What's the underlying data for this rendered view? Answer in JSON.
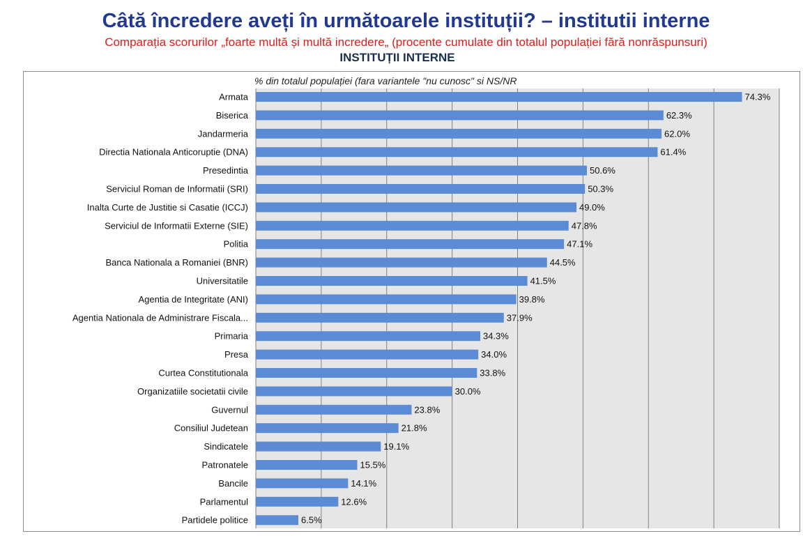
{
  "header": {
    "title": "Câtă încredere aveți în următoarele instituții? – institutii interne",
    "subtitle": "Comparația scorurilor „foarte multă și multă incredere„ (procente cumulate din totalul populației fără nonrăspunsuri)",
    "section_label": "INSTITUȚII INTERNE"
  },
  "colors": {
    "bar": "#5b8bd5",
    "plot_background": "#e6e6e6",
    "grid": "#7f7f7f",
    "title": "#213a8f",
    "subtitle": "#e31b1b"
  },
  "chart_data": {
    "type": "bar",
    "orientation": "horizontal",
    "axis_title": "% din totalul populației (fara variantele \"nu cunosc\" si NS/NR",
    "xlim": [
      0,
      80
    ],
    "grid": true,
    "value_suffix": "%",
    "categories": [
      "Armata",
      "Biserica",
      "Jandarmeria",
      "Directia Nationala Anticoruptie (DNA)",
      "Presedintia",
      "Serviciul Roman de Informatii (SRI)",
      "Inalta Curte de Justitie si Casatie (ICCJ)",
      "Serviciul de Informatii Externe (SIE)",
      "Politia",
      "Banca Nationala a Romaniei (BNR)",
      "Universitatile",
      "Agentia de Integritate (ANI)",
      "Agentia Nationala de Administrare Fiscala...",
      "Primaria",
      "Presa",
      "Curtea Constitutionala",
      "Organizatiile societatii civile",
      "Guvernul",
      "Consiliul Judetean",
      "Sindicatele",
      "Patronatele",
      "Bancile",
      "Parlamentul",
      "Partidele politice"
    ],
    "values": [
      74.3,
      62.3,
      62.0,
      61.4,
      50.6,
      50.3,
      49.0,
      47.8,
      47.1,
      44.5,
      41.5,
      39.8,
      37.9,
      34.3,
      34.0,
      33.8,
      30.0,
      23.8,
      21.8,
      19.1,
      15.5,
      14.1,
      12.6,
      6.5
    ],
    "labels": [
      "74.3%",
      "62.3%",
      "62.0%",
      "61.4%",
      "50.6%",
      "50.3%",
      "49.0%",
      "47.8%",
      "47.1%",
      "44.5%",
      "41.5%",
      "39.8%",
      "37.9%",
      "34.3%",
      "34.0%",
      "33.8%",
      "30.0%",
      "23.8%",
      "21.8%",
      "19.1%",
      "15.5%",
      "14.1%",
      "12.6%",
      "6.5%"
    ]
  }
}
